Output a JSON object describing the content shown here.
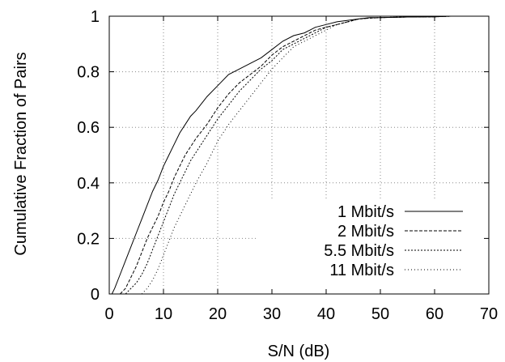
{
  "chart_data": {
    "type": "line",
    "xlabel": "S/N (dB)",
    "ylabel": "Cumulative Fraction of Pairs",
    "xlim": [
      0,
      70
    ],
    "ylim": [
      0,
      1
    ],
    "xticks": [
      0,
      10,
      20,
      30,
      40,
      50,
      60,
      70
    ],
    "yticks": [
      0,
      0.2,
      0.4,
      0.6,
      0.8,
      1
    ],
    "ytick_labels": [
      "0",
      "0.2",
      "0.4",
      "0.6",
      "0.8",
      "1"
    ],
    "grid": true,
    "legend_position": "bottom-right",
    "series": [
      {
        "name": "1 Mbit/s",
        "style": "solid",
        "x": [
          0.5,
          1,
          2,
          3,
          4,
          5,
          6,
          7,
          8,
          9,
          10,
          11,
          12,
          13,
          14,
          15,
          16,
          18,
          20,
          22,
          24,
          26,
          28,
          30,
          32,
          34,
          36,
          38,
          40,
          42,
          44,
          46,
          48,
          50,
          55,
          60,
          63
        ],
        "y": [
          0,
          0.02,
          0.07,
          0.12,
          0.17,
          0.22,
          0.27,
          0.32,
          0.37,
          0.41,
          0.46,
          0.5,
          0.54,
          0.58,
          0.61,
          0.64,
          0.66,
          0.71,
          0.75,
          0.79,
          0.81,
          0.83,
          0.85,
          0.88,
          0.91,
          0.93,
          0.94,
          0.96,
          0.97,
          0.98,
          0.985,
          0.99,
          0.995,
          0.995,
          0.997,
          0.998,
          1.0
        ]
      },
      {
        "name": "2 Mbit/s",
        "style": "dashed",
        "x": [
          2,
          3,
          4,
          5,
          6,
          7,
          8,
          9,
          10,
          11,
          12,
          13,
          14,
          15,
          16,
          18,
          20,
          22,
          24,
          26,
          28,
          30,
          32,
          34,
          36,
          38,
          40,
          42,
          44,
          46,
          48,
          50,
          55,
          60,
          63
        ],
        "y": [
          0,
          0.02,
          0.06,
          0.1,
          0.15,
          0.2,
          0.24,
          0.28,
          0.33,
          0.37,
          0.42,
          0.46,
          0.5,
          0.53,
          0.56,
          0.61,
          0.67,
          0.72,
          0.76,
          0.79,
          0.82,
          0.86,
          0.89,
          0.91,
          0.93,
          0.95,
          0.96,
          0.97,
          0.98,
          0.99,
          0.993,
          0.995,
          0.997,
          0.998,
          1.0
        ]
      },
      {
        "name": "5.5 Mbit/s",
        "style": "dotted",
        "x": [
          3,
          4,
          5,
          6,
          7,
          8,
          9,
          10,
          11,
          12,
          13,
          14,
          15,
          16,
          18,
          20,
          22,
          24,
          26,
          28,
          30,
          32,
          34,
          36,
          38,
          40,
          42,
          44,
          46,
          48,
          50,
          55,
          60,
          63
        ],
        "y": [
          0,
          0.02,
          0.04,
          0.07,
          0.11,
          0.16,
          0.21,
          0.26,
          0.31,
          0.36,
          0.4,
          0.44,
          0.48,
          0.51,
          0.57,
          0.63,
          0.68,
          0.73,
          0.77,
          0.81,
          0.84,
          0.88,
          0.9,
          0.92,
          0.94,
          0.96,
          0.97,
          0.98,
          0.99,
          0.993,
          0.995,
          0.997,
          0.998,
          1.0
        ]
      },
      {
        "name": "11 Mbit/s",
        "style": "sparse-dotted",
        "x": [
          6,
          7,
          8,
          9,
          10,
          11,
          12,
          13,
          14,
          15,
          16,
          18,
          20,
          22,
          24,
          26,
          28,
          30,
          32,
          34,
          36,
          38,
          40,
          42,
          44,
          46,
          48,
          50,
          55,
          60,
          63
        ],
        "y": [
          0,
          0.02,
          0.05,
          0.09,
          0.14,
          0.19,
          0.24,
          0.28,
          0.32,
          0.36,
          0.4,
          0.47,
          0.55,
          0.61,
          0.66,
          0.71,
          0.76,
          0.81,
          0.85,
          0.89,
          0.91,
          0.93,
          0.95,
          0.97,
          0.98,
          0.99,
          0.993,
          0.995,
          0.997,
          0.998,
          1.0
        ]
      }
    ]
  }
}
